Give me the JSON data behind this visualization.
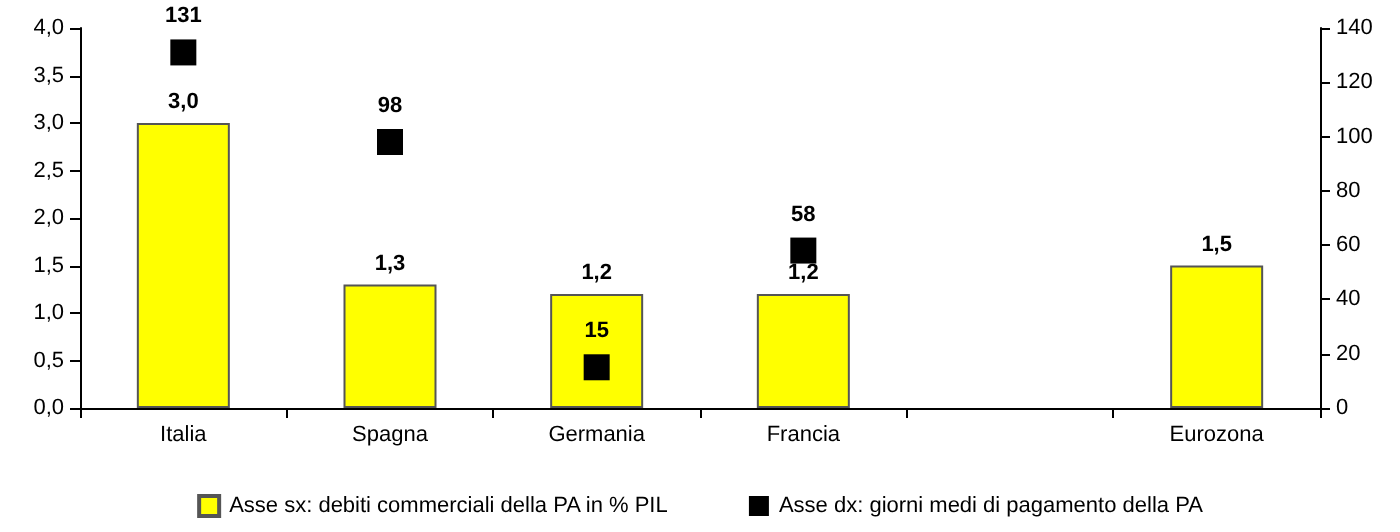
{
  "chart_data": {
    "type": "bar",
    "categories": [
      "Italia",
      "Spagna",
      "Germania",
      "Francia",
      null,
      "Eurozona"
    ],
    "series": [
      {
        "name": "Asse sx: debiti commerciali della PA in % PIL",
        "color": "#ffff00",
        "values": [
          3.0,
          1.3,
          1.2,
          1.2,
          null,
          1.5
        ],
        "value_labels": [
          "3,0",
          "1,3",
          "1,2",
          "1,2",
          null,
          "1,5"
        ]
      },
      {
        "name": "Asse dx: giorni medi di pagamento della PA",
        "type": "scatter",
        "axis": "y2",
        "marker": "square",
        "color": "#000000",
        "values": [
          131,
          98,
          15,
          58,
          null,
          null
        ],
        "value_labels": [
          "131",
          "98",
          "15",
          "58",
          null,
          null
        ]
      }
    ],
    "ylim": [
      0,
      4
    ],
    "yticks": [
      {
        "value": 0,
        "label": "0,0"
      },
      {
        "value": 0.5,
        "label": "0,5"
      },
      {
        "value": 1,
        "label": "1,0"
      },
      {
        "value": 1.5,
        "label": "1,5"
      },
      {
        "value": 2,
        "label": "2,0"
      },
      {
        "value": 2.5,
        "label": "2,5"
      },
      {
        "value": 3,
        "label": "3,0"
      },
      {
        "value": 3.5,
        "label": "3,5"
      },
      {
        "value": 4,
        "label": "4,0"
      }
    ],
    "y2lim": [
      0,
      140
    ],
    "y2ticks": [
      0,
      20,
      40,
      60,
      80,
      100,
      120,
      140
    ],
    "grid": false,
    "legend": "bottom"
  }
}
